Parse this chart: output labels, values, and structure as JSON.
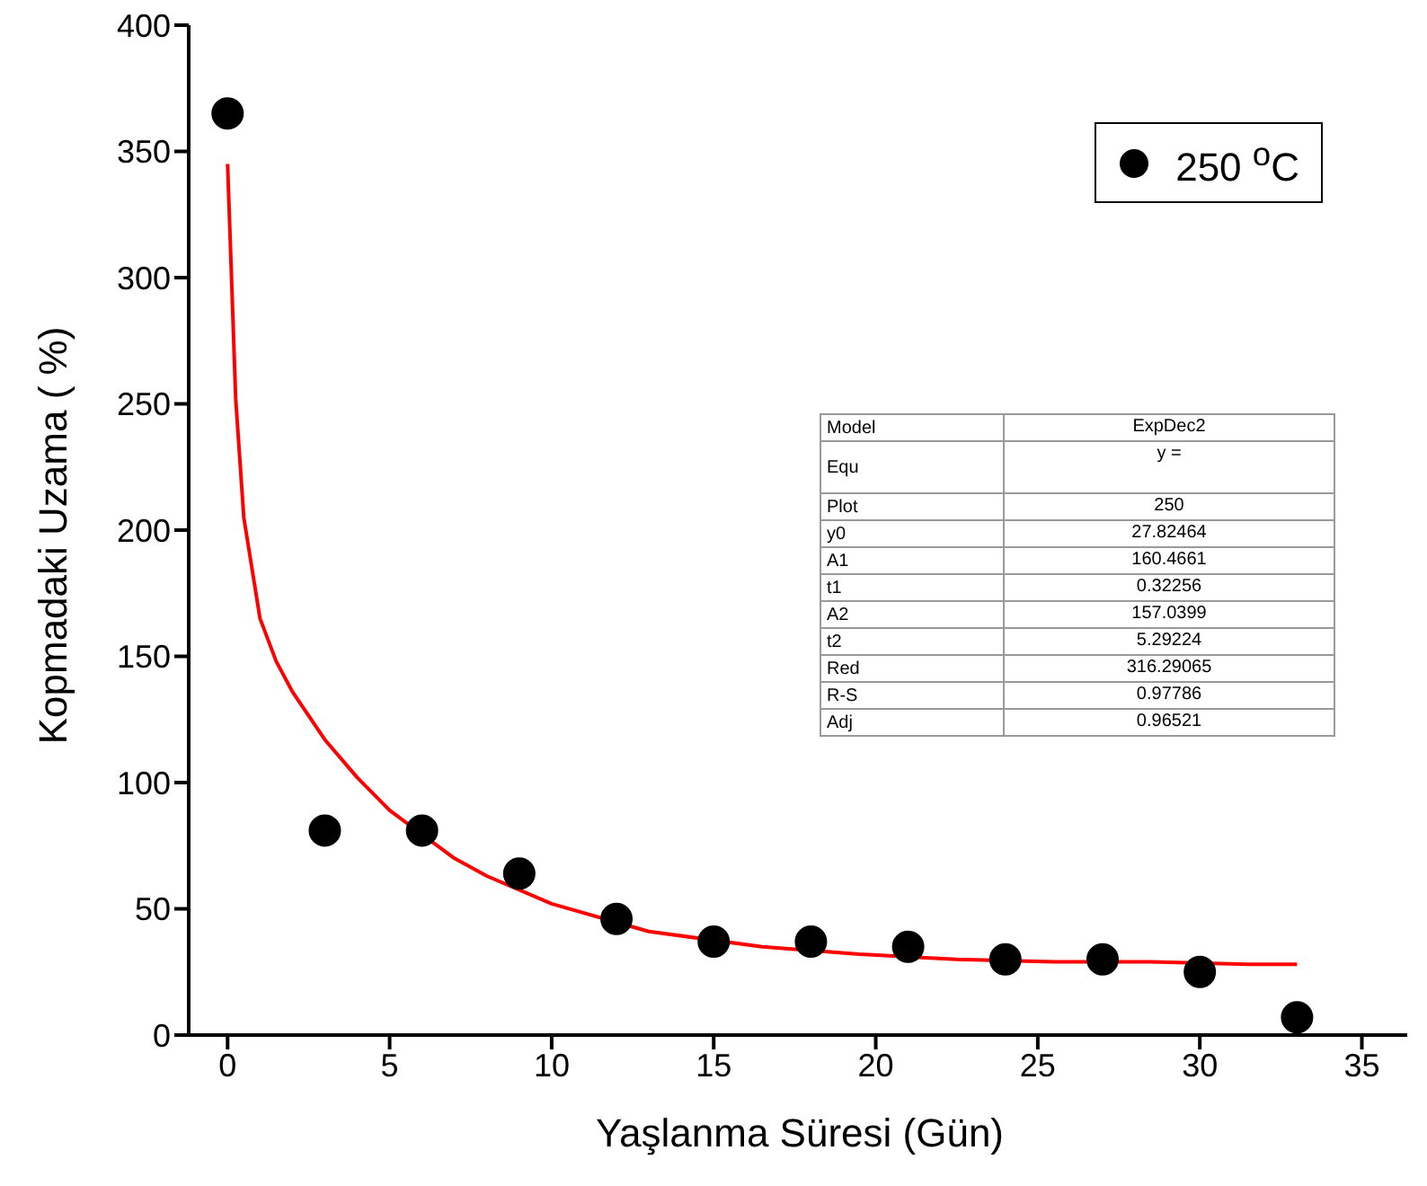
{
  "chart_data": {
    "type": "scatter",
    "xlabel": "Yaşlanma Süresi (Gün)",
    "ylabel": "Kopmadaki Uzama ( %)",
    "xlim": [
      -1.2,
      36.4
    ],
    "xticks": [
      0,
      5,
      10,
      15,
      20,
      25,
      30,
      35
    ],
    "ylim": [
      0,
      400
    ],
    "yticks": [
      0,
      50,
      100,
      150,
      200,
      250,
      300,
      350,
      400
    ],
    "grid": false,
    "legend": "top right",
    "marker": "circle",
    "series": [
      {
        "name": "250 $^{o}$C",
        "color": "#000000",
        "x": [
          0,
          3,
          6,
          9,
          12,
          15,
          18,
          21,
          24,
          27,
          30,
          33
        ],
        "values": [
          365,
          81,
          81,
          64,
          46,
          37,
          37,
          35,
          30,
          30,
          25,
          7
        ]
      },
      {
        "type": "line",
        "color": "#ff0000",
        "line_style": "solid",
        "marker": "none",
        "x": [
          0,
          0.25,
          0.5,
          1,
          1.5,
          2,
          3,
          4,
          5,
          7,
          8,
          10,
          13,
          16.5,
          19.5,
          22.5,
          25.5,
          28.5,
          31.5,
          33
        ],
        "values": [
          345,
          252,
          205,
          165,
          148,
          136,
          117,
          102,
          89,
          70,
          63,
          52,
          41,
          35,
          32,
          30,
          29,
          29,
          28,
          28
        ]
      }
    ],
    "annotations": [
      "Model",
      "ExpDec2",
      "Equ",
      "y =",
      "Plot",
      "250",
      "y0",
      "27.82464",
      "A1",
      "160.4661",
      "t1",
      "0.32256",
      "A2",
      "157.0399",
      "t2",
      "5.29224",
      "Red",
      "316.29065",
      "R-S",
      "0.97786",
      "Adj",
      "0.96521"
    ]
  }
}
